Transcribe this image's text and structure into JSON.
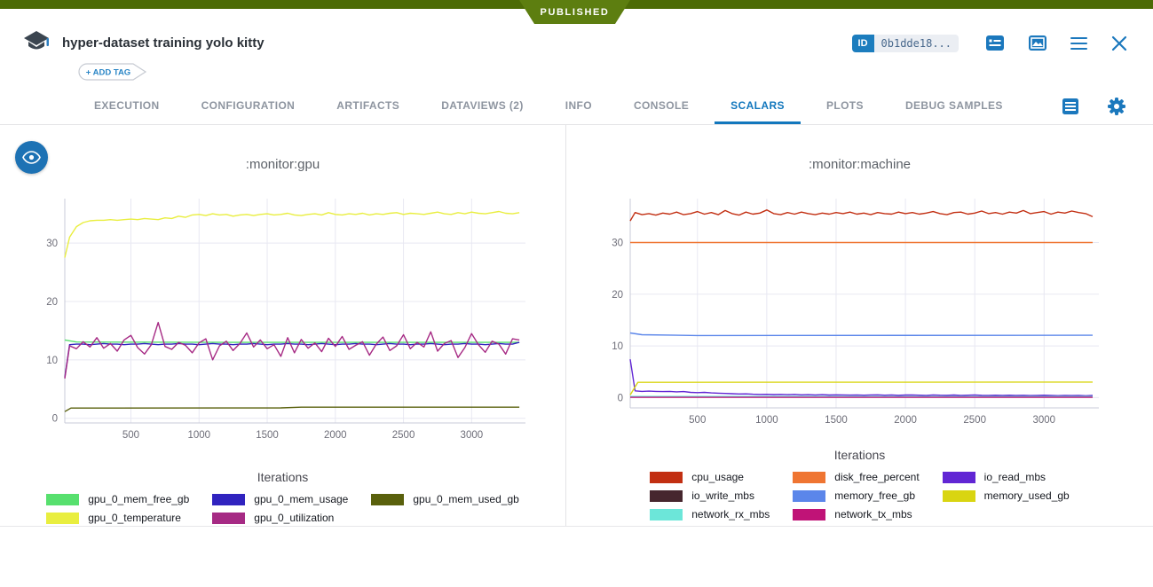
{
  "published_badge": "PUBLISHED",
  "header": {
    "title": "hyper-dataset training yolo kitty",
    "add_tag_label": "+ ADD TAG",
    "id_label": "ID",
    "id_value": "0b1dde18..."
  },
  "tabs": {
    "items": [
      {
        "label": "EXECUTION",
        "active": false
      },
      {
        "label": "CONFIGURATION",
        "active": false
      },
      {
        "label": "ARTIFACTS",
        "active": false
      },
      {
        "label": "DATAVIEWS (2)",
        "active": false
      },
      {
        "label": "INFO",
        "active": false
      },
      {
        "label": "CONSOLE",
        "active": false
      },
      {
        "label": "SCALARS",
        "active": true
      },
      {
        "label": "PLOTS",
        "active": false
      },
      {
        "label": "DEBUG SAMPLES",
        "active": false
      }
    ]
  },
  "colors": {
    "accent_blue": "#1b78bd",
    "topbar_green": "#4c6b06",
    "badge_green": "#5d7e10",
    "grid": "#e8e8f2",
    "axis_line": "#c9cbd8"
  },
  "chart_data": [
    {
      "type": "line",
      "title": ":monitor:gpu",
      "xlabel": "Iterations",
      "xlim": [
        15,
        3395
      ],
      "ylim": [
        -0.8,
        37.6
      ],
      "xticks": [
        500,
        1000,
        1500,
        2000,
        2500,
        3000
      ],
      "yticks": [
        0,
        10,
        20,
        30
      ],
      "grid": true,
      "legend_position": "bottom",
      "x": [
        15,
        50,
        100,
        150,
        200,
        250,
        300,
        350,
        400,
        450,
        500,
        550,
        600,
        650,
        700,
        750,
        800,
        850,
        900,
        950,
        1000,
        1050,
        1100,
        1150,
        1200,
        1250,
        1300,
        1350,
        1400,
        1450,
        1500,
        1550,
        1600,
        1650,
        1700,
        1750,
        1800,
        1850,
        1900,
        1950,
        2000,
        2050,
        2100,
        2150,
        2200,
        2250,
        2300,
        2350,
        2400,
        2450,
        2500,
        2550,
        2600,
        2650,
        2700,
        2750,
        2800,
        2850,
        2900,
        2950,
        3000,
        3050,
        3100,
        3150,
        3200,
        3250,
        3300,
        3350
      ],
      "series": [
        {
          "name": "gpu_0_mem_free_gb",
          "color": "#57e06e",
          "points": [
            [
              15,
              13.4
            ],
            [
              100,
              13.05
            ],
            [
              1500,
              13.0
            ],
            [
              3350,
              13.0
            ]
          ]
        },
        {
          "name": "gpu_0_mem_usage",
          "color": "#3023bf",
          "y": [
            7.0,
            12.6,
            12.7,
            12.7,
            12.6,
            12.7,
            12.8,
            12.7,
            12.7,
            12.6,
            12.7,
            12.7,
            12.8,
            12.7,
            12.6,
            12.7,
            12.7,
            12.8,
            12.7,
            12.7,
            12.6,
            12.7,
            12.8,
            12.7,
            12.7,
            12.6,
            12.7,
            12.7,
            12.8,
            12.7,
            12.6,
            12.7,
            12.7,
            12.8,
            12.7,
            12.7,
            12.6,
            12.7,
            12.8,
            12.7,
            12.6,
            12.7,
            12.7,
            12.8,
            12.7,
            12.7,
            12.6,
            12.7,
            12.8,
            12.7,
            12.7,
            12.6,
            12.7,
            12.7,
            12.8,
            12.7,
            12.6,
            12.7,
            12.7,
            12.8,
            12.7,
            12.7,
            12.6,
            12.7,
            12.8,
            12.7,
            12.7,
            13.0
          ]
        },
        {
          "name": "gpu_0_mem_used_gb",
          "color": "#59600c",
          "points": [
            [
              15,
              1.15
            ],
            [
              60,
              1.75
            ],
            [
              1600,
              1.78
            ],
            [
              1750,
              1.9
            ],
            [
              3350,
              1.9
            ]
          ]
        },
        {
          "name": "gpu_0_temperature",
          "color": "#e9ee3f",
          "y": [
            27.5,
            31.0,
            32.8,
            33.5,
            33.8,
            33.9,
            33.9,
            34.0,
            33.9,
            34.0,
            34.1,
            34.0,
            34.2,
            34.1,
            34.0,
            34.3,
            34.2,
            34.6,
            34.4,
            34.8,
            34.9,
            34.7,
            35.0,
            34.8,
            34.9,
            34.6,
            34.8,
            34.9,
            34.7,
            34.9,
            35.0,
            34.8,
            34.9,
            35.1,
            34.8,
            34.7,
            34.9,
            35.0,
            34.8,
            35.2,
            34.9,
            34.8,
            35.0,
            34.9,
            35.1,
            34.8,
            35.0,
            34.9,
            35.1,
            35.2,
            34.9,
            35.1,
            35.0,
            34.9,
            35.1,
            35.3,
            35.0,
            34.9,
            35.2,
            35.0,
            35.3,
            35.1,
            35.0,
            35.2,
            35.4,
            35.1,
            35.0,
            35.2
          ]
        },
        {
          "name": "gpu_0_utilization",
          "color": "#a62a84",
          "y": [
            6.8,
            12.4,
            11.9,
            13.1,
            12.2,
            13.8,
            12.0,
            12.8,
            11.5,
            13.4,
            14.2,
            12.1,
            11.0,
            12.6,
            16.4,
            12.3,
            11.8,
            13.0,
            12.5,
            11.2,
            12.9,
            13.6,
            10.0,
            12.4,
            13.2,
            11.6,
            12.8,
            14.6,
            12.2,
            13.4,
            11.9,
            12.6,
            10.6,
            13.8,
            11.2,
            13.5,
            12.0,
            12.9,
            11.4,
            13.7,
            12.3,
            14.0,
            11.8,
            12.5,
            13.1,
            10.8,
            12.7,
            13.9,
            11.6,
            12.4,
            14.3,
            11.9,
            13.0,
            12.2,
            14.8,
            11.5,
            12.8,
            13.3,
            10.4,
            12.1,
            14.5,
            12.6,
            11.3,
            13.2,
            12.7,
            11.0,
            13.6,
            13.4
          ]
        }
      ]
    },
    {
      "type": "line",
      "title": ":monitor:machine",
      "xlabel": "Iterations",
      "xlim": [
        15,
        3395
      ],
      "ylim": [
        -2.0,
        38.5
      ],
      "xticks": [
        500,
        1000,
        1500,
        2000,
        2500,
        3000
      ],
      "yticks": [
        0,
        10,
        20,
        30
      ],
      "grid": true,
      "legend_position": "bottom",
      "x": [
        15,
        50,
        100,
        150,
        200,
        250,
        300,
        350,
        400,
        450,
        500,
        550,
        600,
        650,
        700,
        750,
        800,
        850,
        900,
        950,
        1000,
        1050,
        1100,
        1150,
        1200,
        1250,
        1300,
        1350,
        1400,
        1450,
        1500,
        1550,
        1600,
        1650,
        1700,
        1750,
        1800,
        1850,
        1900,
        1950,
        2000,
        2050,
        2100,
        2150,
        2200,
        2250,
        2300,
        2350,
        2400,
        2450,
        2500,
        2550,
        2600,
        2650,
        2700,
        2750,
        2800,
        2850,
        2900,
        2950,
        3000,
        3050,
        3100,
        3150,
        3200,
        3250,
        3300,
        3350
      ],
      "series": [
        {
          "name": "cpu_usage",
          "color": "#c22f12",
          "y": [
            34.2,
            35.8,
            35.4,
            35.6,
            35.3,
            35.7,
            35.5,
            35.9,
            35.4,
            35.6,
            36.0,
            35.5,
            35.8,
            35.4,
            36.2,
            35.6,
            35.3,
            35.9,
            35.5,
            35.7,
            36.3,
            35.6,
            35.4,
            35.8,
            35.5,
            35.9,
            35.6,
            35.4,
            35.7,
            35.5,
            35.8,
            35.6,
            35.9,
            35.5,
            35.7,
            35.4,
            35.8,
            35.6,
            35.5,
            35.9,
            35.6,
            35.8,
            35.5,
            35.7,
            36.0,
            35.6,
            35.4,
            35.8,
            35.9,
            35.5,
            35.7,
            36.1,
            35.6,
            35.8,
            35.5,
            35.9,
            35.7,
            36.2,
            35.6,
            35.8,
            36.0,
            35.5,
            35.9,
            35.7,
            36.1,
            35.8,
            35.6,
            35.0
          ]
        },
        {
          "name": "disk_free_percent",
          "color": "#ef7532",
          "points": [
            [
              15,
              30
            ],
            [
              3350,
              30
            ]
          ]
        },
        {
          "name": "io_read_mbs",
          "color": "#6126d4",
          "y": [
            7.4,
            1.3,
            1.2,
            1.25,
            1.2,
            1.15,
            1.2,
            1.1,
            1.15,
            1.0,
            0.95,
            1.0,
            0.9,
            0.85,
            0.8,
            0.75,
            0.7,
            0.72,
            0.65,
            0.6,
            0.62,
            0.58,
            0.6,
            0.55,
            0.6,
            0.52,
            0.55,
            0.5,
            0.55,
            0.48,
            0.52,
            0.5,
            0.47,
            0.5,
            0.45,
            0.5,
            0.52,
            0.46,
            0.5,
            0.44,
            0.48,
            0.5,
            0.45,
            0.42,
            0.5,
            0.46,
            0.44,
            0.48,
            0.42,
            0.45,
            0.5,
            0.44,
            0.4,
            0.46,
            0.42,
            0.45,
            0.4,
            0.44,
            0.38,
            0.42,
            0.45,
            0.4,
            0.36,
            0.42,
            0.38,
            0.4,
            0.35,
            0.4
          ]
        },
        {
          "name": "io_write_mbs",
          "color": "#46262e",
          "points": [
            [
              15,
              0.12
            ],
            [
              3350,
              0.12
            ]
          ]
        },
        {
          "name": "memory_free_gb",
          "color": "#5b86ea",
          "points": [
            [
              15,
              12.5
            ],
            [
              100,
              12.15
            ],
            [
              500,
              12.0
            ],
            [
              3350,
              12.05
            ]
          ]
        },
        {
          "name": "memory_used_gb",
          "color": "#d9d511",
          "points": [
            [
              15,
              0.5
            ],
            [
              70,
              2.95
            ],
            [
              3350,
              3.0
            ]
          ]
        },
        {
          "name": "network_rx_mbs",
          "color": "#6ce6d9",
          "points": [
            [
              15,
              0.22
            ],
            [
              3350,
              0.2
            ]
          ]
        },
        {
          "name": "network_tx_mbs",
          "color": "#c01377",
          "points": [
            [
              15,
              0.05
            ],
            [
              3350,
              0.05
            ]
          ]
        }
      ]
    }
  ]
}
